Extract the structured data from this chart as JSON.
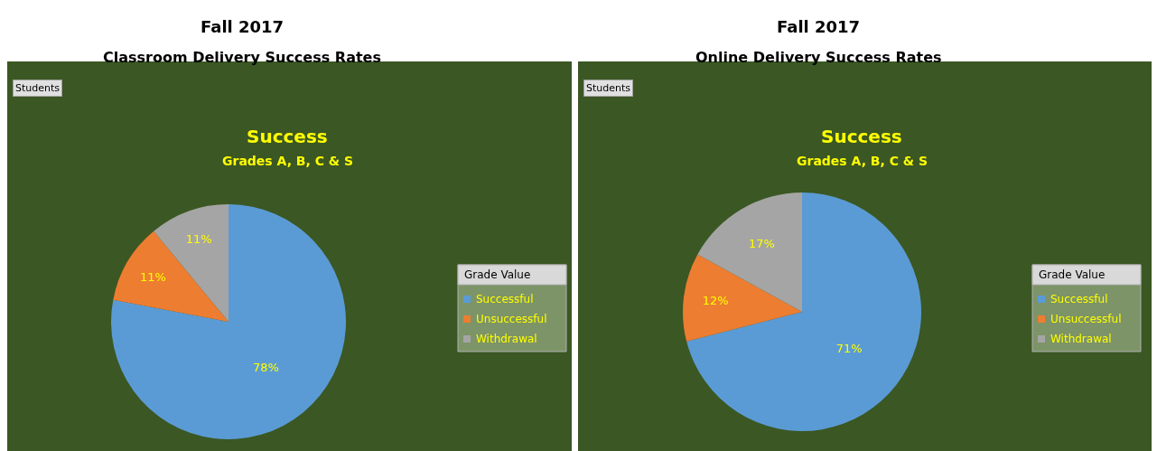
{
  "chart_data": [
    {
      "type": "pie",
      "title": "Fall 2017",
      "subtitle": "Classroom Delivery Success Rates",
      "annotations": [
        "Students",
        "Success",
        "Grades A, B, C & S"
      ],
      "legend_title": "Grade Value",
      "legend": "right",
      "categories": [
        "Successful",
        "Unsuccessful",
        "Withdrawal"
      ],
      "values": [
        78,
        11,
        11
      ],
      "value_labels": [
        "78%",
        "11%",
        "11%"
      ],
      "colors": [
        "#5b9bd5",
        "#ed7d31",
        "#a5a5a5"
      ]
    },
    {
      "type": "pie",
      "title": "Fall 2017",
      "subtitle": "Online Delivery Success Rates",
      "annotations": [
        "Students",
        "Success",
        "Grades A, B, C & S"
      ],
      "legend_title": "Grade Value",
      "legend": "right",
      "categories": [
        "Successful",
        "Unsuccessful",
        "Withdrawal"
      ],
      "values": [
        71,
        12,
        17
      ],
      "value_labels": [
        "71%",
        "12%",
        "17%"
      ],
      "colors": [
        "#5b9bd5",
        "#ed7d31",
        "#a5a5a5"
      ]
    }
  ]
}
